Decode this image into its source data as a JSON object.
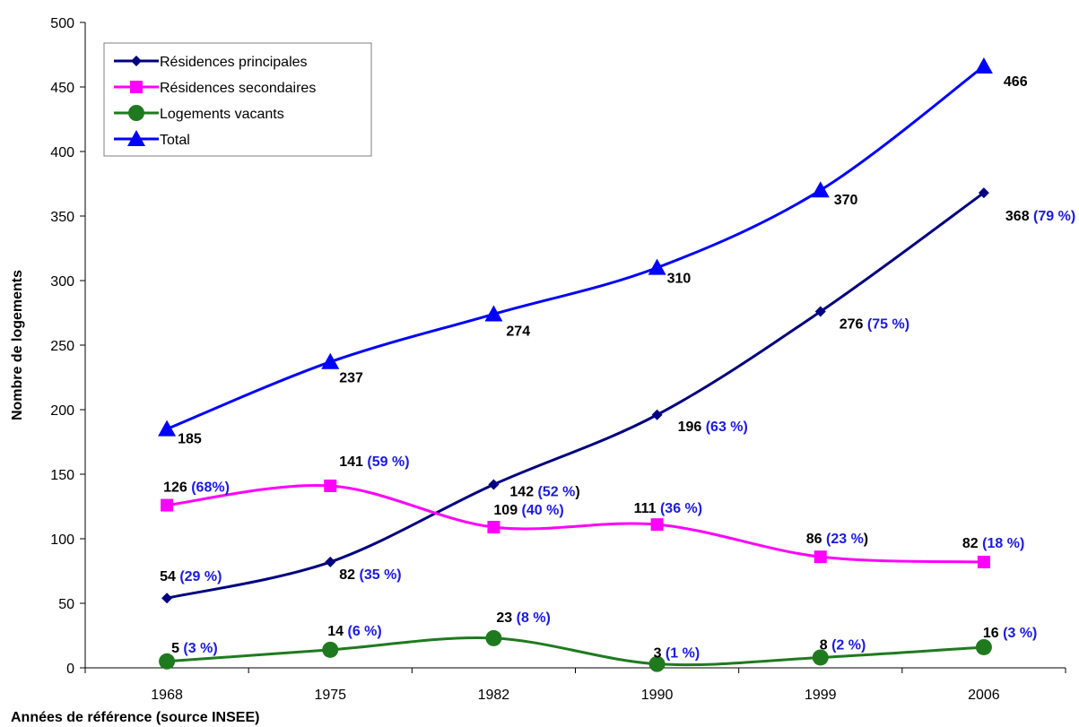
{
  "chart_data": {
    "type": "line",
    "xlabel": "Années de référence (source INSEE)",
    "ylabel": "Nombre de logements",
    "ylim": [
      0,
      500
    ],
    "yticks": [
      0,
      50,
      100,
      150,
      200,
      250,
      300,
      350,
      400,
      450,
      500
    ],
    "categories": [
      "1968",
      "1975",
      "1982",
      "1990",
      "1999",
      "2006"
    ],
    "grid": false,
    "legend_position": "top-left",
    "series": [
      {
        "name": "Résidences principales",
        "color": "#000080",
        "marker": "diamond",
        "values": [
          54,
          82,
          142,
          196,
          276,
          368
        ],
        "labels": [
          {
            "value": "54",
            "pct": "(29 %)",
            "tail": ""
          },
          {
            "value": "82",
            "pct": "(35 %)",
            "tail": ""
          },
          {
            "value": "142",
            "pct": "(52 %",
            "tail": ")"
          },
          {
            "value": "196",
            "pct": "(63 %)",
            "tail": ""
          },
          {
            "value": "276",
            "pct": "(75 %)",
            "tail": ""
          },
          {
            "value": "368",
            "pct": "(79 %)",
            "tail": ""
          }
        ]
      },
      {
        "name": "Résidences secondaires",
        "color": "#FF00FF",
        "marker": "square",
        "values": [
          126,
          141,
          109,
          111,
          86,
          82
        ],
        "labels": [
          {
            "value": "126",
            "pct": "(68%)",
            "tail": ""
          },
          {
            "value": "141",
            "pct": "(59 %)",
            "tail": ""
          },
          {
            "value": "109",
            "pct": "(40 %)",
            "tail": ""
          },
          {
            "value": "111",
            "pct": "(36 %)",
            "tail": ""
          },
          {
            "value": "86",
            "pct": "(23 %",
            "tail": ")"
          },
          {
            "value": "82",
            "pct": "(18 %)",
            "tail": ""
          }
        ]
      },
      {
        "name": "Logements vacants",
        "color": "#1F7A1F",
        "marker": "circle",
        "values": [
          5,
          14,
          23,
          3,
          8,
          16
        ],
        "labels": [
          {
            "value": "5",
            "pct": "(3 %)",
            "tail": ""
          },
          {
            "value": "14",
            "pct": "(6 %)",
            "tail": ""
          },
          {
            "value": "23",
            "pct": "(8 %)",
            "tail": ""
          },
          {
            "value": "3",
            "pct": "(1 %)",
            "tail": ""
          },
          {
            "value": "8",
            "pct": "(2 %)",
            "tail": ""
          },
          {
            "value": "16",
            "pct": "(3 %)",
            "tail": ""
          }
        ]
      },
      {
        "name": "Total",
        "color": "#0000FF",
        "marker": "triangle",
        "values": [
          185,
          237,
          274,
          310,
          370,
          466
        ],
        "labels": [
          {
            "value": "185",
            "pct": "",
            "tail": ""
          },
          {
            "value": "237",
            "pct": "",
            "tail": ""
          },
          {
            "value": "274",
            "pct": "",
            "tail": ""
          },
          {
            "value": "310",
            "pct": "",
            "tail": ""
          },
          {
            "value": "370",
            "pct": "",
            "tail": ""
          },
          {
            "value": "466",
            "pct": "",
            "tail": ""
          }
        ]
      }
    ],
    "colors": {
      "value_text": "#000000",
      "pct_text": "#1A1AE6",
      "axis": "#000000"
    }
  }
}
